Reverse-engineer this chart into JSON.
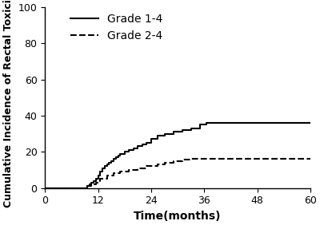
{
  "title": "",
  "xlabel": "Time(months)",
  "ylabel": "Cumulative Incidence of Rectal Toxicity",
  "xlim": [
    0,
    60
  ],
  "ylim": [
    0,
    100
  ],
  "xticks": [
    0,
    12,
    24,
    36,
    48,
    60
  ],
  "yticks": [
    0,
    20,
    40,
    60,
    80,
    100
  ],
  "background_color": "#ffffff",
  "grade14": {
    "x": [
      0,
      9.5,
      9.5,
      10.0,
      10.0,
      10.5,
      10.5,
      11.0,
      11.0,
      11.5,
      11.5,
      12.0,
      12.0,
      12.5,
      12.5,
      13.0,
      13.0,
      13.5,
      13.5,
      14.0,
      14.0,
      14.5,
      14.5,
      15.0,
      15.0,
      15.5,
      15.5,
      16.0,
      16.0,
      16.5,
      16.5,
      17.0,
      17.0,
      18.0,
      18.0,
      19.0,
      19.0,
      20.0,
      20.0,
      21.0,
      21.0,
      22.0,
      22.0,
      23.0,
      23.0,
      24.0,
      24.0,
      25.5,
      25.5,
      27.0,
      27.0,
      29.0,
      29.0,
      31.0,
      31.0,
      33.0,
      33.0,
      35.0,
      35.0,
      36.5,
      36.5,
      60
    ],
    "y": [
      0,
      0,
      1,
      1,
      2,
      2,
      3,
      3,
      4,
      4,
      5,
      5,
      7,
      7,
      9,
      9,
      11,
      11,
      12,
      12,
      13,
      13,
      14,
      14,
      15,
      15,
      16,
      16,
      17,
      17,
      18,
      18,
      19,
      19,
      20,
      20,
      21,
      21,
      22,
      22,
      23,
      23,
      24,
      24,
      25,
      25,
      27,
      27,
      29,
      29,
      30,
      30,
      31,
      31,
      32,
      32,
      33,
      33,
      35,
      35,
      36,
      36
    ],
    "label": "Grade 1-4",
    "linestyle": "-",
    "linewidth": 1.5,
    "color": "#000000"
  },
  "grade24": {
    "x": [
      0,
      9.5,
      9.5,
      10.5,
      10.5,
      11.5,
      11.5,
      12.5,
      12.5,
      14.0,
      14.0,
      15.5,
      15.5,
      17.0,
      17.0,
      19.0,
      19.0,
      21.0,
      21.0,
      23.0,
      23.0,
      25.5,
      25.5,
      27.0,
      27.0,
      29.0,
      29.0,
      31.0,
      31.0,
      33.0,
      33.0,
      35.0,
      35.0,
      36.5,
      36.5,
      60
    ],
    "y": [
      0,
      0,
      1,
      1,
      2,
      2,
      3,
      3,
      5,
      5,
      7,
      7,
      8,
      8,
      9,
      9,
      10,
      10,
      11,
      11,
      12,
      12,
      13,
      13,
      14,
      14,
      15,
      15,
      15.5,
      15.5,
      16,
      16,
      16,
      16,
      16,
      16
    ],
    "label": "Grade 2-4",
    "linestyle": "--",
    "linewidth": 1.5,
    "color": "#000000"
  },
  "legend_fontsize": 10,
  "axis_fontsize": 10,
  "tick_fontsize": 9,
  "ylabel_fontsize": 9
}
